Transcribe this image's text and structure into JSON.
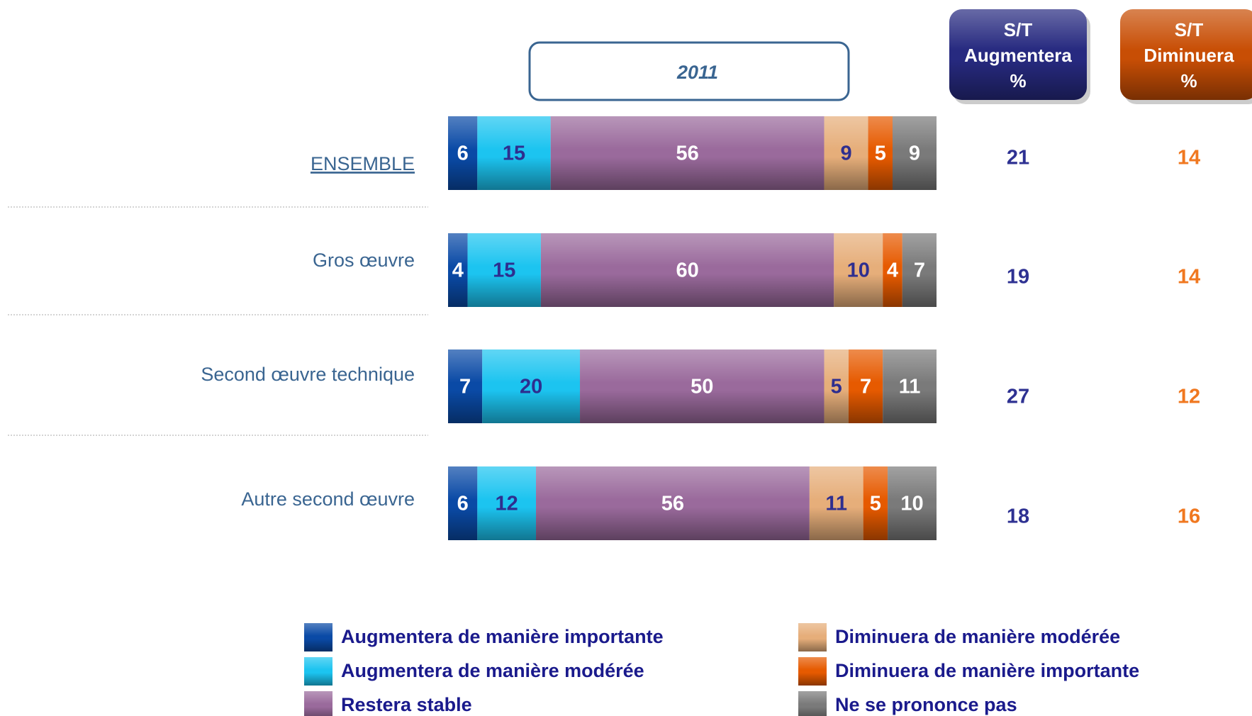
{
  "chart_data": {
    "type": "stacked_barh",
    "title": "2011",
    "categories": [
      "ENSEMBLE",
      "Gros œuvre",
      "Second œuvre technique",
      "Autre second œuvre"
    ],
    "xlim": [
      0,
      100
    ],
    "series": [
      {
        "name": "Augmentera de manière importante",
        "color": "#0a4aa6",
        "label_color": "#ffffff",
        "values": [
          6,
          4,
          7,
          6
        ]
      },
      {
        "name": "Augmentera de manière modérée",
        "color": "#1cc4f0",
        "label_color": "#2e2e8f",
        "values": [
          15,
          15,
          20,
          12
        ]
      },
      {
        "name": "Restera stable",
        "color": "#9a6a9c",
        "label_color": "#ffffff",
        "values": [
          56,
          60,
          50,
          56
        ]
      },
      {
        "name": "Diminuera de manière modérée",
        "color": "#e6ae7a",
        "label_color": "#2e2e8f",
        "values": [
          9,
          10,
          5,
          11
        ]
      },
      {
        "name": "Diminuera de manière importante",
        "color": "#e65a00",
        "label_color": "#ffffff",
        "values": [
          5,
          4,
          7,
          5
        ]
      },
      {
        "name": "Ne se prononce pas",
        "color": "#7a7a7a",
        "label_color": "#ffffff",
        "values": [
          9,
          7,
          11,
          10
        ]
      }
    ],
    "summary": [
      {
        "name": [
          "S/T",
          "Augmentera",
          "%"
        ],
        "color": "#2e3192",
        "header_color": "#272a80",
        "values": [
          21,
          19,
          27,
          18
        ]
      },
      {
        "name": [
          "S/T",
          "Diminuera",
          "%"
        ],
        "color": "#f07820",
        "header_color": "#c84e05",
        "values": [
          14,
          14,
          12,
          16
        ]
      }
    ]
  }
}
